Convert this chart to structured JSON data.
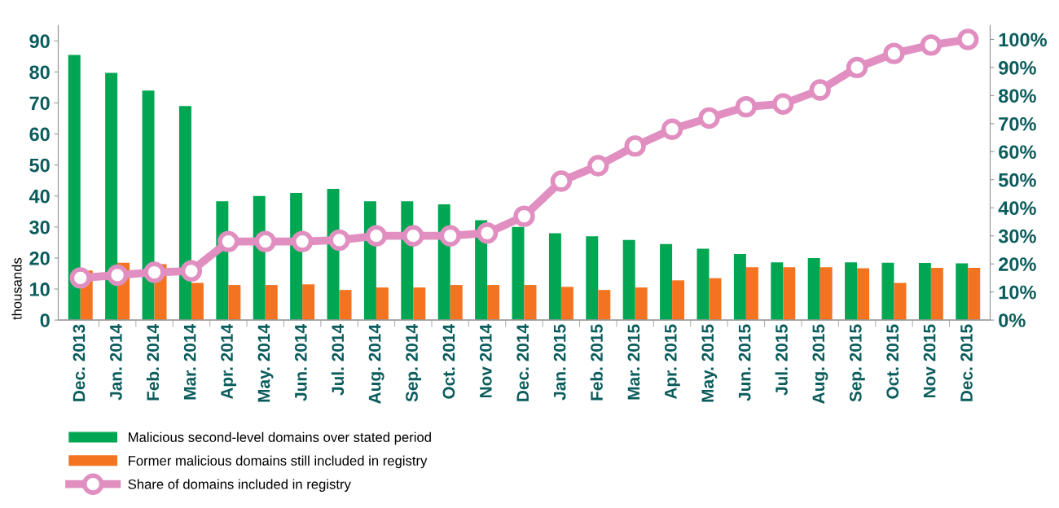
{
  "chart_data": {
    "type": "bar",
    "ylabel": "thousands",
    "categories": [
      "Dec. 2013",
      "Jan. 2014",
      "Feb. 2014",
      "Mar. 2014",
      "Apr. 2014",
      "May. 2014",
      "Jun. 2014",
      "Jul. 2014",
      "Aug. 2014",
      "Sep. 2014",
      "Oct. 2014",
      "Nov 2014",
      "Dec. 2014",
      "Jan. 2015",
      "Feb. 2015",
      "Mar. 2015",
      "Apr. 2015",
      "May. 2015",
      "Jun. 2015",
      "Jul. 2015",
      "Aug. 2015",
      "Sep. 2015",
      "Oct. 2015",
      "Nov 2015",
      "Dec. 2015"
    ],
    "series": [
      {
        "name": "Malicious second-level domains over stated period",
        "color": "#00a651",
        "values": [
          85.5,
          79.7,
          74,
          69,
          38.3,
          40,
          41,
          42.3,
          38.3,
          38.3,
          37.3,
          32.2,
          30,
          28,
          27,
          25.8,
          24.5,
          23,
          21.3,
          18.6,
          20,
          18.6,
          18.5,
          18.4,
          18.3
        ]
      },
      {
        "name": "Former malicious domains still included in registry",
        "color": "#f37321",
        "values": [
          16,
          18.5,
          18,
          12,
          11.3,
          11.3,
          11.5,
          9.7,
          10.5,
          10.5,
          11.3,
          11.3,
          11.3,
          10.7,
          9.7,
          10.5,
          12.8,
          13.5,
          17,
          17,
          17,
          16.7,
          12,
          16.8,
          16.8
        ]
      },
      {
        "name": "Share of domains included in registry",
        "type": "line",
        "axis": "y2",
        "color": "#e08fc0",
        "marker": "circle",
        "values": [
          15,
          16,
          17,
          17.5,
          28,
          28,
          28,
          28.5,
          30,
          30,
          30,
          31,
          37,
          49.5,
          55,
          62,
          68,
          72,
          76,
          77,
          82,
          90,
          95,
          98,
          100
        ]
      }
    ],
    "ylim": [
      0,
      95
    ],
    "yticks": [
      0,
      10,
      20,
      30,
      40,
      50,
      60,
      70,
      80,
      90
    ],
    "y2lim": [
      0,
      105
    ],
    "y2ticks": [
      {
        "value": 0,
        "label": "0%"
      },
      {
        "value": 10,
        "label": "10%"
      },
      {
        "value": 20,
        "label": "20%"
      },
      {
        "value": 30,
        "label": "30%"
      },
      {
        "value": 40,
        "label": "40%"
      },
      {
        "value": 50,
        "label": "50%"
      },
      {
        "value": 60,
        "label": "60%"
      },
      {
        "value": 70,
        "label": "70%"
      },
      {
        "value": 80,
        "label": "80%"
      },
      {
        "value": 90,
        "label": "90%"
      },
      {
        "value": 100,
        "label": "100%"
      }
    ],
    "grid": false,
    "legend": "bottom left",
    "line_style": "solid"
  }
}
